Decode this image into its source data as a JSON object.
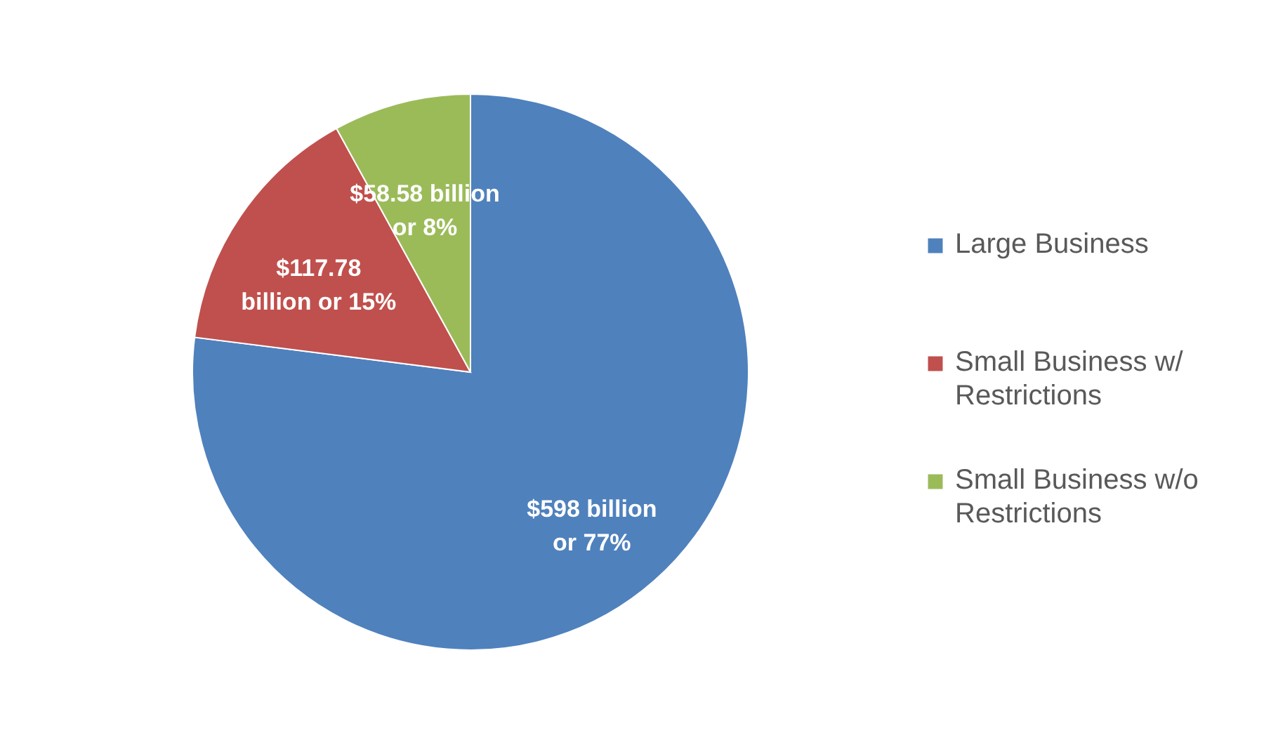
{
  "chart_data": {
    "type": "pie",
    "categories": [
      "Large Business",
      "Small Business w/ Restrictions",
      "Small Business w/o Restrictions"
    ],
    "values": [
      77,
      15,
      8
    ],
    "colors": [
      "#4f81bd",
      "#c0504d",
      "#9bbb59"
    ],
    "value_labels": [
      "$598 billion or 77%",
      "$117.78 billion or 15%",
      "$58.58 billion or 8%"
    ],
    "legend": "right"
  }
}
